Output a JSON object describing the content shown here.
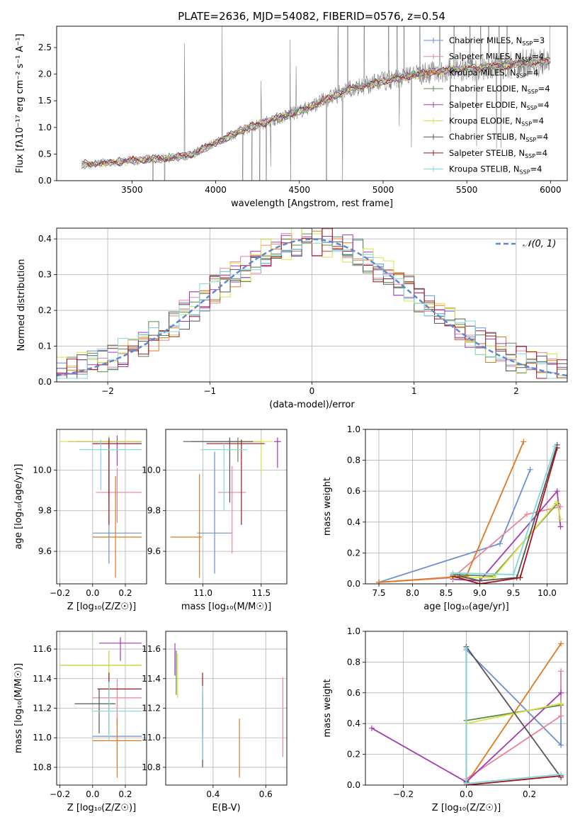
{
  "title": "PLATE=2636, MJD=54082, FIBERID=0576, z=0.54",
  "colors": {
    "axes": "#000000",
    "grid": "#b0b0b0",
    "normal_curve": "#5f88cf",
    "series": [
      "#6a8fd0",
      "#e8869a",
      "#e07820",
      "#5c8a4a",
      "#a23bb5",
      "#d9e246",
      "#555555",
      "#a3141f",
      "#7fd8da"
    ]
  },
  "legend": {
    "spectrum": [
      {
        "name": "Chabrier MILES",
        "nssp": "3"
      },
      {
        "name": "Salpeter MILES",
        "nssp": "4"
      },
      {
        "name": "Kroupa MILES",
        "nssp": "4"
      },
      {
        "name": "Chabrier ELODIE",
        "nssp": "4"
      },
      {
        "name": "Salpeter ELODIE",
        "nssp": "4"
      },
      {
        "name": "Kroupa ELODIE",
        "nssp": "4"
      },
      {
        "name": "Chabrier STELIB",
        "nssp": "4"
      },
      {
        "name": "Salpeter STELIB",
        "nssp": "4"
      },
      {
        "name": "Kroupa STELIB",
        "nssp": "4"
      }
    ],
    "normal": "𝒩(0, 1)"
  },
  "chart_data": [
    {
      "id": "spectrum",
      "type": "line",
      "xlabel": "wavelength [Angstrom, rest frame]",
      "ylabel": "Flux [fλ10⁻¹⁷ erg cm⁻² s⁻¹ A⁻¹]",
      "xlim": [
        3050,
        6100
      ],
      "ylim": [
        0,
        2.9
      ],
      "xticks": [
        3500,
        4000,
        4500,
        5000,
        5500,
        6000
      ],
      "yticks": [
        0.0,
        0.5,
        1.0,
        1.5,
        2.0,
        2.5
      ],
      "data_color": "#808080",
      "data_range": [
        3200,
        6000
      ],
      "continuum": [
        [
          3200,
          0.3
        ],
        [
          3500,
          0.38
        ],
        [
          3700,
          0.42
        ],
        [
          3850,
          0.48
        ],
        [
          4000,
          0.72
        ],
        [
          4200,
          1.0
        ],
        [
          4500,
          1.3
        ],
        [
          4800,
          1.72
        ],
        [
          5000,
          1.87
        ],
        [
          5300,
          2.05
        ],
        [
          5600,
          2.12
        ],
        [
          6000,
          2.25
        ]
      ]
    },
    {
      "id": "residuals",
      "type": "histogram",
      "xlabel": "(data-model)/error",
      "ylabel": "Normed distribution",
      "xlim": [
        -2.5,
        2.5
      ],
      "ylim": [
        0,
        0.43
      ],
      "xticks": [
        -2,
        -1,
        0,
        1,
        2
      ],
      "yticks": [
        0.0,
        0.1,
        0.2,
        0.3,
        0.4
      ],
      "bins": 50,
      "normal": {
        "mu": 0,
        "sigma": 1
      }
    },
    {
      "id": "age_vs_Z",
      "type": "errorbar",
      "xlabel": "Z [log₁₀(Z/Z☉)]",
      "ylabel": "age  [log₁₀(age/yr)]",
      "xlim": [
        -0.22,
        0.33
      ],
      "ylim": [
        9.44,
        10.2
      ],
      "xticks": [
        -0.2,
        0.0,
        0.2
      ],
      "yticks": [
        9.6,
        9.8,
        10.0
      ],
      "points": [
        {
          "x": 0.1,
          "xerr": [
            0.1,
            0.2
          ],
          "y": 9.69,
          "yerr": [
            0.15,
            0.3
          ],
          "s": 0
        },
        {
          "x": 0.15,
          "xerr": [
            0.13,
            0.15
          ],
          "y": 9.89,
          "yerr": [
            0.15,
            0.12
          ],
          "s": 1
        },
        {
          "x": 0.14,
          "xerr": [
            0.14,
            0.16
          ],
          "y": 9.67,
          "yerr": [
            0.2,
            0.3
          ],
          "s": 2
        },
        {
          "x": 0.1,
          "xerr": [
            0.2,
            0.2
          ],
          "y": 10.14,
          "yerr": [
            0.3,
            0.02
          ],
          "s": 3
        },
        {
          "x": 0.15,
          "xerr": [
            0.3,
            0.15
          ],
          "y": 10.14,
          "yerr": [
            0.12,
            0.03
          ],
          "s": 4
        },
        {
          "x": 0.1,
          "xerr": [
            0.3,
            0.2
          ],
          "y": 10.14,
          "yerr": [
            0.15,
            0.03
          ],
          "s": 5
        },
        {
          "x": 0.1,
          "xerr": [
            0.1,
            0.2
          ],
          "y": 10.13,
          "yerr": [
            0.25,
            0.03
          ],
          "s": 6
        },
        {
          "x": 0.1,
          "xerr": [
            0.1,
            0.2
          ],
          "y": 10.13,
          "yerr": [
            0.4,
            0.02
          ],
          "s": 7
        },
        {
          "x": 0.05,
          "xerr": [
            0.13,
            0.25
          ],
          "y": 10.1,
          "yerr": [
            0.2,
            0.05
          ],
          "s": 8
        }
      ]
    },
    {
      "id": "age_vs_mass",
      "type": "errorbar",
      "xlabel": "mass [log₁₀(M/M☉)]",
      "xlim": [
        10.68,
        11.72
      ],
      "ylim": [
        9.44,
        10.2
      ],
      "xticks": [
        11.0,
        11.5
      ],
      "yticks": [
        9.6,
        9.8,
        10.0
      ],
      "points": [
        {
          "x": 11.1,
          "xerr": [
            0.15,
            0.15
          ],
          "y": 9.69,
          "yerr": [
            0.2,
            0.4
          ],
          "s": 0
        },
        {
          "x": 11.25,
          "xerr": [
            0.12,
            0.12
          ],
          "y": 9.89,
          "yerr": [
            0.3,
            0.13
          ],
          "s": 1
        },
        {
          "x": 10.97,
          "xerr": [
            0.25,
            0.02
          ],
          "y": 9.67,
          "yerr": [
            0.2,
            0.31
          ],
          "s": 2
        },
        {
          "x": 11.3,
          "xerr": [
            0.4,
            0.2
          ],
          "y": 10.14,
          "yerr": [
            0.1,
            0.02
          ],
          "s": 3
        },
        {
          "x": 11.64,
          "xerr": [
            0.03,
            0.03
          ],
          "y": 10.14,
          "yerr": [
            0.13,
            0.02
          ],
          "s": 4
        },
        {
          "x": 11.5,
          "xerr": [
            0.2,
            0.1
          ],
          "y": 10.14,
          "yerr": [
            0.15,
            0.02
          ],
          "s": 5
        },
        {
          "x": 11.23,
          "xerr": [
            0.4,
            0.2
          ],
          "y": 10.14,
          "yerr": [
            0.3,
            0.02
          ],
          "s": 6
        },
        {
          "x": 11.33,
          "xerr": [
            0.3,
            0.2
          ],
          "y": 10.13,
          "yerr": [
            0.4,
            0.02
          ],
          "s": 7
        },
        {
          "x": 11.18,
          "xerr": [
            0.2,
            0.2
          ],
          "y": 10.1,
          "yerr": [
            0.3,
            0.03
          ],
          "s": 8
        }
      ]
    },
    {
      "id": "mw_vs_age",
      "type": "line",
      "xlabel": "age  [log₁₀(age/yr)]",
      "ylabel": "mass weight",
      "xlim": [
        7.3,
        10.3
      ],
      "ylim": [
        0,
        1.0
      ],
      "xticks": [
        7.5,
        8.0,
        8.5,
        9.0,
        9.5,
        10.0
      ],
      "yticks": [
        0.0,
        0.2,
        0.4,
        0.6,
        0.8,
        1.0
      ],
      "series": [
        {
          "s": 0,
          "x": [
            7.5,
            9.3,
            9.75
          ],
          "y": [
            0.01,
            0.26,
            0.74
          ]
        },
        {
          "s": 1,
          "x": [
            7.5,
            8.6,
            9.7,
            10.2
          ],
          "y": [
            0.01,
            0.04,
            0.45,
            0.5
          ]
        },
        {
          "s": 2,
          "x": [
            7.5,
            8.8,
            9.65
          ],
          "y": [
            0.01,
            0.05,
            0.92
          ]
        },
        {
          "s": 3,
          "x": [
            8.6,
            9.2,
            10.15
          ],
          "y": [
            0.06,
            0.05,
            0.52
          ]
        },
        {
          "s": 4,
          "x": [
            8.6,
            9.0,
            10.15,
            10.2
          ],
          "y": [
            0.03,
            0.02,
            0.6,
            0.37
          ]
        },
        {
          "s": 5,
          "x": [
            8.6,
            9.2,
            10.15,
            10.2
          ],
          "y": [
            0.04,
            0.04,
            0.53,
            0.42
          ]
        },
        {
          "s": 6,
          "x": [
            8.7,
            9.0,
            9.55,
            10.15
          ],
          "y": [
            0.05,
            0.02,
            0.04,
            0.9
          ]
        },
        {
          "s": 7,
          "x": [
            8.6,
            9.0,
            9.6,
            10.15
          ],
          "y": [
            0.05,
            0.0,
            0.04,
            0.88
          ]
        },
        {
          "s": 8,
          "x": [
            8.6,
            9.5,
            10.12
          ],
          "y": [
            0.07,
            0.06,
            0.89
          ]
        }
      ]
    },
    {
      "id": "mass_vs_Z",
      "type": "errorbar",
      "xlabel": "Z [log₁₀(Z/Z☉)]",
      "ylabel": "mass [log₁₀(M/M☉)]",
      "xlim": [
        -0.22,
        0.33
      ],
      "ylim": [
        10.68,
        11.72
      ],
      "xticks": [
        -0.2,
        0.0,
        0.2
      ],
      "yticks": [
        10.8,
        11.0,
        11.2,
        11.4,
        11.6
      ],
      "points": [
        {
          "x": 0.15,
          "xerr": [
            0.15,
            0.15
          ],
          "y": 11.01,
          "yerr": [
            0.2,
            0.2
          ],
          "s": 0
        },
        {
          "x": 0.15,
          "xerr": [
            0.15,
            0.15
          ],
          "y": 11.27,
          "yerr": [
            0.2,
            0.13
          ],
          "s": 1
        },
        {
          "x": 0.15,
          "xerr": [
            0.15,
            0.15
          ],
          "y": 10.98,
          "yerr": [
            0.25,
            0.15
          ],
          "s": 2
        },
        {
          "x": 0.1,
          "xerr": [
            0.3,
            0.2
          ],
          "y": 11.49,
          "yerr": [
            0.2,
            0.1
          ],
          "s": 3
        },
        {
          "x": 0.17,
          "xerr": [
            0.13,
            0.13
          ],
          "y": 11.64,
          "yerr": [
            0.12,
            0.04
          ],
          "s": 4
        },
        {
          "x": 0.1,
          "xerr": [
            0.3,
            0.2
          ],
          "y": 11.49,
          "yerr": [
            0.25,
            0.1
          ],
          "s": 5
        },
        {
          "x": 0.04,
          "xerr": [
            0.15,
            0.1
          ],
          "y": 11.23,
          "yerr": [
            0.2,
            0.1
          ],
          "s": 6
        },
        {
          "x": 0.1,
          "xerr": [
            0.07,
            0.2
          ],
          "y": 11.33,
          "yerr": [
            0.3,
            0.11
          ],
          "s": 7
        },
        {
          "x": 0.1,
          "xerr": [
            0.1,
            0.2
          ],
          "y": 11.18,
          "yerr": [
            0.2,
            0.2
          ],
          "s": 8
        }
      ]
    },
    {
      "id": "mass_vs_ebv",
      "type": "errorbar",
      "xlabel": "E(B-V)",
      "xlim": [
        0.22,
        0.68
      ],
      "ylim": [
        10.68,
        11.72
      ],
      "xticks": [
        0.4,
        0.6
      ],
      "yticks": [
        10.8,
        11.0,
        11.2,
        11.4,
        11.6
      ],
      "points": [
        {
          "x": 0.36,
          "xerr": [
            0,
            0
          ],
          "y": 11.01,
          "yerr": [
            0.2,
            0.2
          ],
          "s": 0
        },
        {
          "x": 0.665,
          "xerr": [
            0,
            0
          ],
          "y": 11.14,
          "yerr": [
            0.27,
            0.27
          ],
          "s": 1
        },
        {
          "x": 0.5,
          "xerr": [
            0,
            0
          ],
          "y": 10.98,
          "yerr": [
            0.25,
            0.15
          ],
          "s": 2
        },
        {
          "x": 0.26,
          "xerr": [
            0,
            0
          ],
          "y": 11.49,
          "yerr": [
            0.2,
            0.1
          ],
          "s": 3
        },
        {
          "x": 0.255,
          "xerr": [
            0,
            0
          ],
          "y": 11.52,
          "yerr": [
            0.1,
            0.12
          ],
          "s": 4
        },
        {
          "x": 0.265,
          "xerr": [
            0,
            0
          ],
          "y": 11.42,
          "yerr": [
            0.15,
            0.15
          ],
          "s": 5
        },
        {
          "x": 0.36,
          "xerr": [
            0,
            0
          ],
          "y": 11.1,
          "yerr": [
            0.3,
            0.2
          ],
          "s": 6
        },
        {
          "x": 0.36,
          "xerr": [
            0,
            0
          ],
          "y": 11.23,
          "yerr": [
            0.2,
            0.21
          ],
          "s": 7
        },
        {
          "x": 0.36,
          "xerr": [
            0,
            0
          ],
          "y": 11.15,
          "yerr": [
            0.3,
            0.2
          ],
          "s": 8
        }
      ]
    },
    {
      "id": "mw_vs_Z",
      "type": "line",
      "xlabel": "Z [log₁₀(Z/Z☉)]",
      "ylabel": "mass weight",
      "xlim": [
        -0.32,
        0.32
      ],
      "ylim": [
        0,
        1.0
      ],
      "xticks": [
        -0.2,
        0.0,
        0.2
      ],
      "yticks": [
        0.0,
        0.2,
        0.4,
        0.6,
        0.8,
        1.0
      ],
      "series": [
        {
          "s": 0,
          "x": [
            0.0,
            0.0,
            0.3,
            0.3
          ],
          "y": [
            0.01,
            0.88,
            0.26,
            0.74
          ]
        },
        {
          "s": 1,
          "x": [
            0.0,
            0.3,
            0.3
          ],
          "y": [
            0.04,
            0.45,
            0.74
          ]
        },
        {
          "s": 2,
          "x": [
            0.0,
            0.3
          ],
          "y": [
            0.01,
            0.92
          ]
        },
        {
          "s": 3,
          "x": [
            0.0,
            0.3
          ],
          "y": [
            0.42,
            0.52
          ]
        },
        {
          "s": 4,
          "x": [
            -0.3,
            0.0,
            0.3
          ],
          "y": [
            0.37,
            0.02,
            0.6
          ]
        },
        {
          "s": 5,
          "x": [
            0.0,
            0.3
          ],
          "y": [
            0.4,
            0.53
          ]
        },
        {
          "s": 6,
          "x": [
            0.0,
            0.0,
            0.3
          ],
          "y": [
            0.02,
            0.9,
            0.05
          ]
        },
        {
          "s": 7,
          "x": [
            0.0,
            0.3
          ],
          "y": [
            0.0,
            0.06
          ]
        },
        {
          "s": 8,
          "x": [
            0.0,
            0.0,
            0.3
          ],
          "y": [
            0.89,
            0.01,
            0.07
          ]
        }
      ]
    }
  ]
}
